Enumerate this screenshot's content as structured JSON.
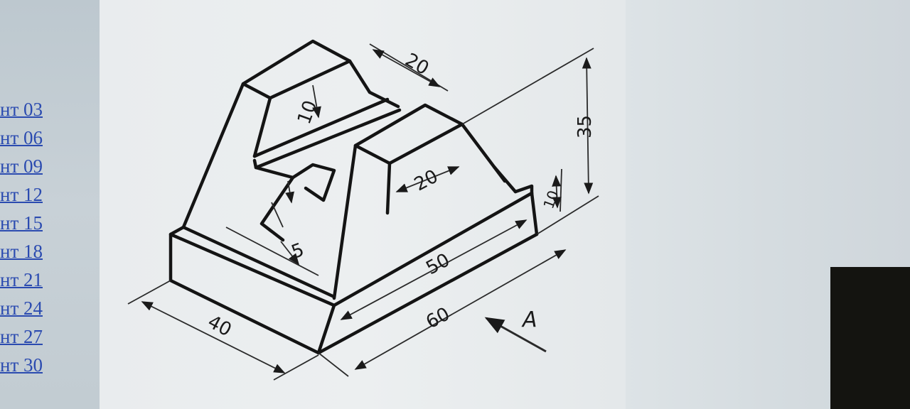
{
  "variants": [
    "нт 03",
    "нт 06",
    "нт 09",
    "нт 12",
    "нт 15",
    "нт 18",
    "нт 21",
    "нт 24",
    "нт 27",
    "нт 30"
  ],
  "dimensions": {
    "top_width": "20",
    "top_height": "10",
    "mid_width": "20",
    "total_height": "35",
    "right_height": "10",
    "length_inner": "50",
    "length_total": "60",
    "depth": "40",
    "small_offset": "5"
  },
  "view_label": "A",
  "colors": {
    "link": "#2b4bb0",
    "line": "#141414",
    "paper": "#eceff0",
    "dark": "#141410"
  }
}
